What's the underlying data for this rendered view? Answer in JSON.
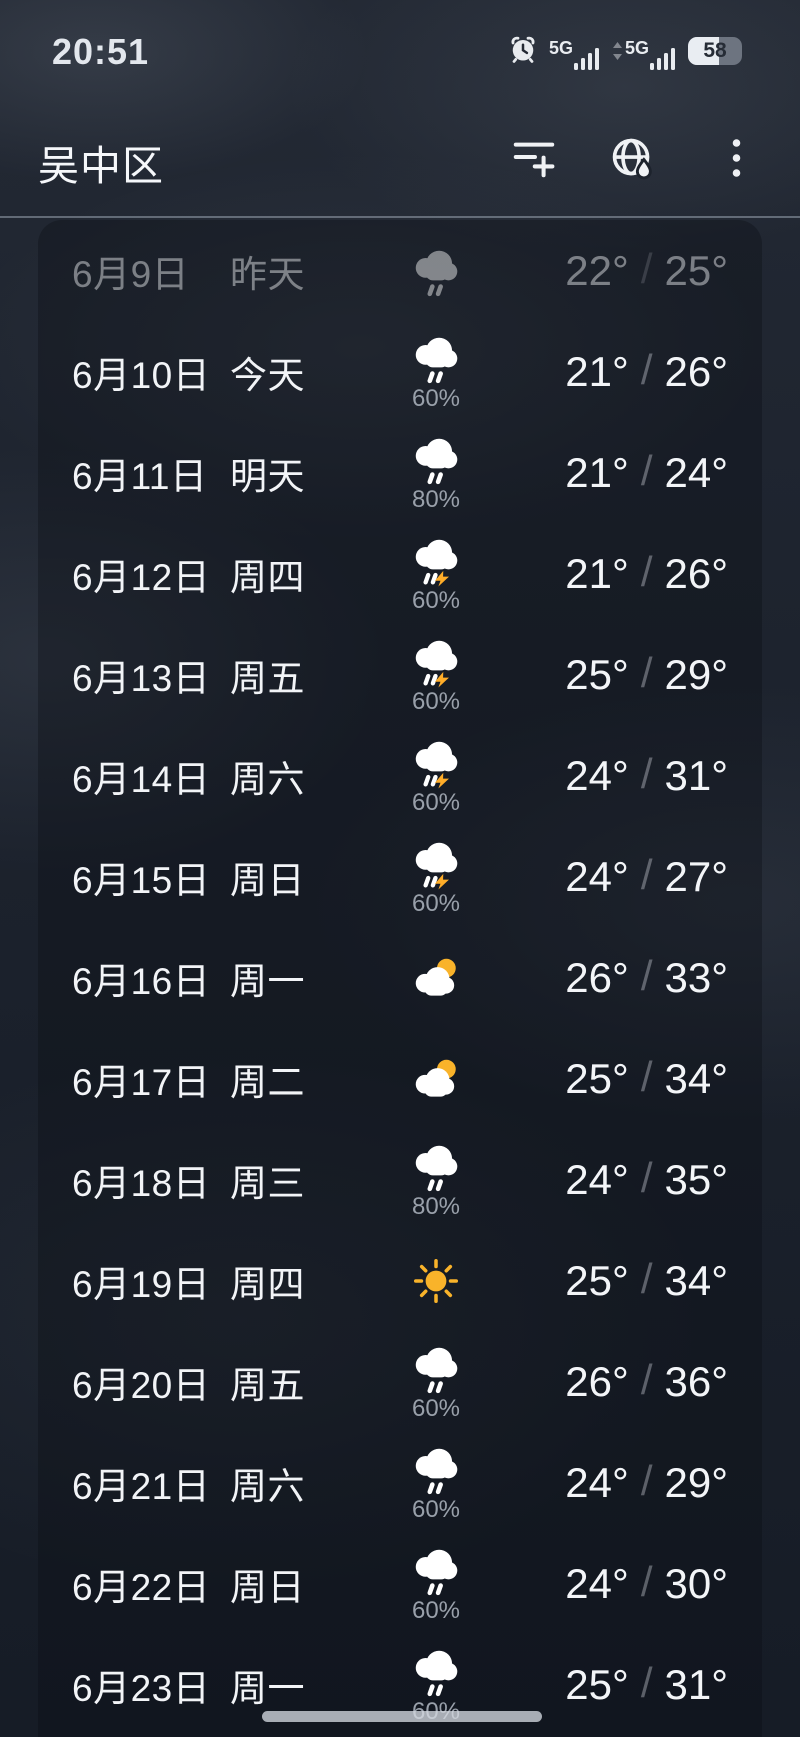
{
  "status_bar": {
    "time": "20:51",
    "sim1_network": "5G",
    "sim2_network": "5G",
    "battery_percent": "58",
    "battery_fill_ratio": 0.58
  },
  "header": {
    "city": "吴中区"
  },
  "forecast": {
    "separator": "/",
    "rows": [
      {
        "date": "6月9日",
        "day": "昨天",
        "icon": "rain",
        "precip": "",
        "low": "22°",
        "high": "25°",
        "dim": true
      },
      {
        "date": "6月10日",
        "day": "今天",
        "icon": "rain",
        "precip": "60%",
        "low": "21°",
        "high": "26°"
      },
      {
        "date": "6月11日",
        "day": "明天",
        "icon": "rain",
        "precip": "80%",
        "low": "21°",
        "high": "24°"
      },
      {
        "date": "6月12日",
        "day": "周四",
        "icon": "thunderstorm",
        "precip": "60%",
        "low": "21°",
        "high": "26°"
      },
      {
        "date": "6月13日",
        "day": "周五",
        "icon": "thunderstorm",
        "precip": "60%",
        "low": "25°",
        "high": "29°"
      },
      {
        "date": "6月14日",
        "day": "周六",
        "icon": "thunderstorm",
        "precip": "60%",
        "low": "24°",
        "high": "31°"
      },
      {
        "date": "6月15日",
        "day": "周日",
        "icon": "thunderstorm",
        "precip": "60%",
        "low": "24°",
        "high": "27°"
      },
      {
        "date": "6月16日",
        "day": "周一",
        "icon": "partly-cloudy",
        "precip": "",
        "low": "26°",
        "high": "33°"
      },
      {
        "date": "6月17日",
        "day": "周二",
        "icon": "partly-cloudy",
        "precip": "",
        "low": "25°",
        "high": "34°"
      },
      {
        "date": "6月18日",
        "day": "周三",
        "icon": "rain",
        "precip": "80%",
        "low": "24°",
        "high": "35°"
      },
      {
        "date": "6月19日",
        "day": "周四",
        "icon": "sunny",
        "precip": "",
        "low": "25°",
        "high": "34°"
      },
      {
        "date": "6月20日",
        "day": "周五",
        "icon": "rain",
        "precip": "60%",
        "low": "26°",
        "high": "36°"
      },
      {
        "date": "6月21日",
        "day": "周六",
        "icon": "rain",
        "precip": "60%",
        "low": "24°",
        "high": "29°"
      },
      {
        "date": "6月22日",
        "day": "周日",
        "icon": "rain",
        "precip": "60%",
        "low": "24°",
        "high": "30°"
      },
      {
        "date": "6月23日",
        "day": "周一",
        "icon": "rain",
        "precip": "60%",
        "low": "25°",
        "high": "31°"
      }
    ]
  },
  "colors": {
    "sun_accent": "#f9b32a",
    "bolt_accent": "#ffad29",
    "precip_text": "#99a0aa",
    "background_base": "#1a2029"
  }
}
